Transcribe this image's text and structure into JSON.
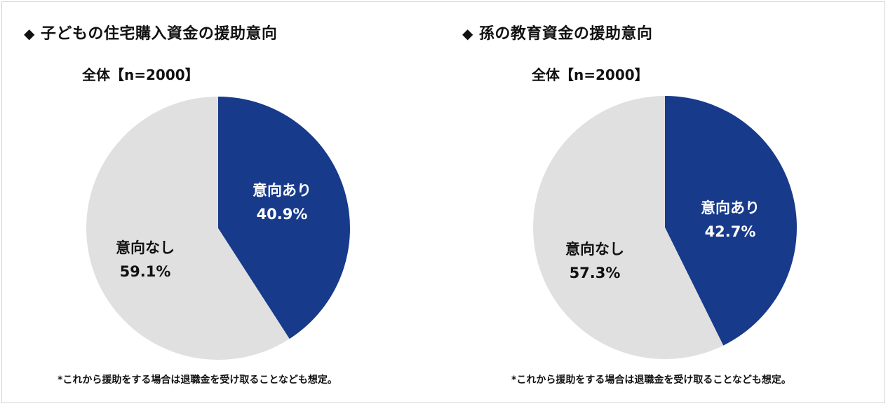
{
  "chart_data": [
    {
      "type": "pie",
      "title": "子どもの住宅購入資金の援助意向",
      "subtitle": "全体【n=2000】",
      "categories": [
        "意向あり",
        "意向なし"
      ],
      "values": [
        40.9,
        59.1
      ],
      "value_labels": [
        "40.9%",
        "59.1%"
      ],
      "colors": [
        "#173a8b",
        "#e0e0e0"
      ],
      "label_colors": [
        "#ffffff",
        "#111111"
      ],
      "start_angle": "12 o'clock",
      "direction": "clockwise",
      "note": "*これから援助をする場合は退職金を受け取ることなども想定。"
    },
    {
      "type": "pie",
      "title": "孫の教育資金の援助意向",
      "subtitle": "全体【n=2000】",
      "categories": [
        "意向あり",
        "意向なし"
      ],
      "values": [
        42.7,
        57.3
      ],
      "value_labels": [
        "42.7%",
        "57.3%"
      ],
      "colors": [
        "#173a8b",
        "#e0e0e0"
      ],
      "label_colors": [
        "#ffffff",
        "#111111"
      ],
      "start_angle": "12 o'clock",
      "direction": "clockwise",
      "note": "*これから援助をする場合は退職金を受け取ることなども想定。"
    }
  ],
  "marker": "◆"
}
